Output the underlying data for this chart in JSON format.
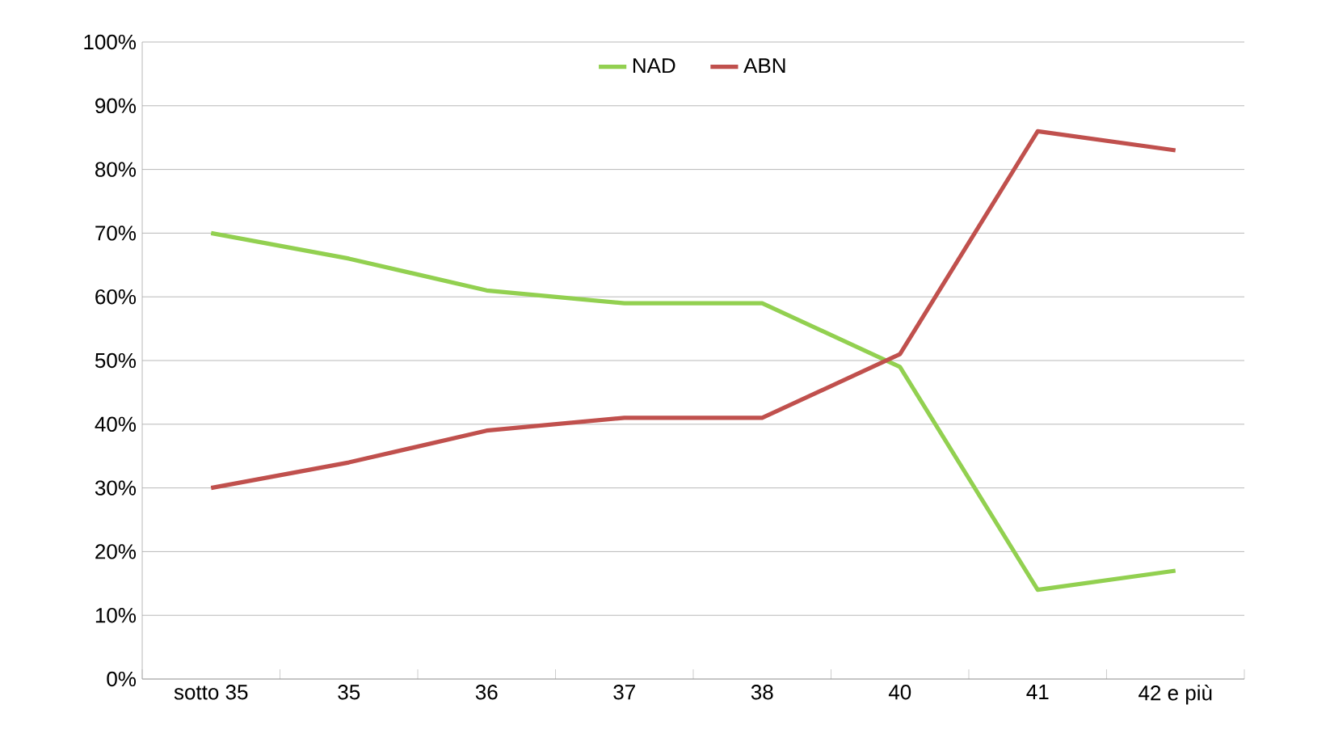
{
  "chart_data": {
    "type": "line",
    "categories": [
      "sotto 35",
      "35",
      "36",
      "37",
      "38",
      "40",
      "41",
      "42 e più"
    ],
    "series": [
      {
        "name": "NAD",
        "color": "#92d050",
        "values": [
          70,
          66,
          61,
          59,
          59,
          49,
          14,
          17
        ]
      },
      {
        "name": "ABN",
        "color": "#c0504d",
        "values": [
          30,
          34,
          39,
          41,
          41,
          51,
          86,
          83
        ]
      }
    ],
    "ylim": [
      0,
      100
    ],
    "yticks": [
      {
        "value": 0,
        "label": "0%"
      },
      {
        "value": 10,
        "label": "10%"
      },
      {
        "value": 20,
        "label": "20%"
      },
      {
        "value": 30,
        "label": "30%"
      },
      {
        "value": 40,
        "label": "40%"
      },
      {
        "value": 50,
        "label": "50%"
      },
      {
        "value": 60,
        "label": "60%"
      },
      {
        "value": 70,
        "label": "70%"
      },
      {
        "value": 80,
        "label": "80%"
      },
      {
        "value": 90,
        "label": "90%"
      },
      {
        "value": 100,
        "label": "100%"
      }
    ],
    "grid": "y",
    "legend": "top",
    "marker": "none",
    "line_style": "solid"
  }
}
